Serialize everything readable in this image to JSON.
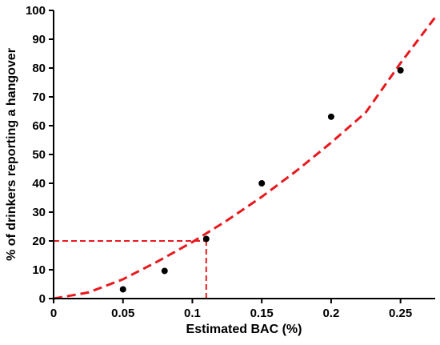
{
  "chart_data": {
    "type": "scatter",
    "xlabel": "Estimated BAC (%)",
    "ylabel": "% of drinkers reporting a hangover",
    "xlim": [
      0,
      0.275
    ],
    "ylim": [
      0,
      100
    ],
    "x_ticks": [
      0,
      0.05,
      0.1,
      0.15,
      0.2,
      0.25
    ],
    "x_tick_labels": [
      "0",
      "0.05",
      "0.1",
      "0.15",
      "0.2",
      "0.25"
    ],
    "y_ticks": [
      0,
      10,
      20,
      30,
      40,
      50,
      60,
      70,
      80,
      90,
      100
    ],
    "y_tick_labels": [
      "0",
      "10",
      "20",
      "30",
      "40",
      "50",
      "60",
      "70",
      "80",
      "90",
      "100"
    ],
    "grid": false,
    "series": [
      {
        "type": "scatter",
        "color": "#000000",
        "x": [
          0.05,
          0.08,
          0.11,
          0.15,
          0.2,
          0.25
        ],
        "y": [
          3.2,
          9.6,
          20.7,
          40.0,
          63.1,
          79.2
        ]
      },
      {
        "type": "line",
        "style": "dashed",
        "color": "#e8191e",
        "x": [
          0,
          0.025,
          0.05,
          0.075,
          0.1,
          0.125,
          0.15,
          0.175,
          0.2,
          0.225,
          0.25,
          0.275
        ],
        "y": [
          0,
          2.1,
          6.7,
          12.9,
          19.6,
          27.1,
          35.3,
          44.3,
          54.1,
          64.6,
          81.7,
          97.6
        ]
      }
    ],
    "annotations": [
      {
        "type": "reference-line",
        "style": "dashed",
        "color": "#e8191e",
        "from": [
          0,
          20
        ],
        "to": [
          0.11,
          20
        ]
      },
      {
        "type": "reference-line",
        "style": "dashed",
        "color": "#e8191e",
        "from": [
          0.11,
          0
        ],
        "to": [
          0.11,
          20
        ]
      }
    ]
  }
}
